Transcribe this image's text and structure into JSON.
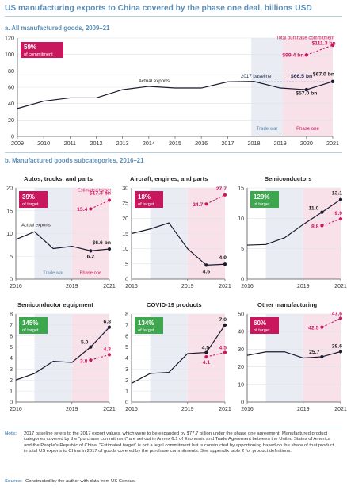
{
  "header": {
    "title": "US manufacturing exports to China covered by the phase one deal, billions USD",
    "section_a": "a. All manufactured goods, 2009–21",
    "section_b": "b. Manufactured goods subcategories, 2016–21"
  },
  "colors": {
    "actual": "#1a1a2e",
    "target": "#c8175d",
    "badge_red": "#c8175d",
    "badge_green": "#3fa650",
    "trade_war_shade": "#e9ecf3",
    "phase_one_shade": "#f9e1ea"
  },
  "chart_data": [
    {
      "id": "all",
      "type": "line",
      "title": "a. All manufactured goods, 2009–21",
      "x_ticks": [
        "2009",
        "2010",
        "2011",
        "2012",
        "2013",
        "2014",
        "2015",
        "2016",
        "2017",
        "2018",
        "2019",
        "2020",
        "2021"
      ],
      "ylim": [
        0,
        120
      ],
      "y_ticks": [
        "0",
        "20",
        "40",
        "60",
        "80",
        "100",
        "120"
      ],
      "badge": {
        "value": "59%",
        "text": "of commitment",
        "color": "#c8175d"
      },
      "shades": [
        {
          "label": "Trade war",
          "from": 2017.9,
          "to": 2019.1
        },
        {
          "label": "Phase one",
          "from": 2019.1,
          "to": 2021
        }
      ],
      "series": [
        {
          "name": "Actual exports",
          "x": [
            2009,
            2010,
            2011,
            2012,
            2013,
            2014,
            2015,
            2016,
            2017,
            2018,
            2019,
            2020,
            2021
          ],
          "y": [
            34,
            43,
            47,
            47,
            57,
            61,
            59,
            59,
            66.5,
            67,
            59,
            57,
            67
          ]
        },
        {
          "name": "Total purchase commitment",
          "x": [
            2020,
            2021
          ],
          "y": [
            99.4,
            111.3
          ]
        },
        {
          "name": "2017 baseline",
          "x": [
            2017.4,
            2021
          ],
          "y": [
            66.5,
            66.5
          ]
        }
      ],
      "labels": {
        "actual": "Actual exports",
        "commitment": "Total purchase commitment",
        "commitment_value": "$111.3 bn",
        "target_2020": "$99.4 bn",
        "baseline": "2017 baseline",
        "baseline_value": "$66.5 bn",
        "actual_2021": "$67.0 bn",
        "actual_2020": "$57.0 bn"
      }
    },
    {
      "id": "autos",
      "type": "line",
      "title": "Autos, trucks, and parts",
      "ylim": [
        0,
        20
      ],
      "y_ticks": [
        "0",
        "5",
        "10",
        "15",
        "20"
      ],
      "x_ticks": [
        "2016",
        "2019",
        "2021"
      ],
      "badge": {
        "value": "39%",
        "text": "of target",
        "color": "#c8175d"
      },
      "shade_labels": [
        "Trade war",
        "Phase one"
      ],
      "actual": {
        "x": [
          2016,
          2017,
          2018,
          2019,
          2020,
          2021
        ],
        "y": [
          8.7,
          10.4,
          6.7,
          7.2,
          6.2,
          6.6
        ]
      },
      "target": {
        "x": [
          2020,
          2021
        ],
        "y": [
          15.4,
          17.3
        ]
      },
      "annotations": {
        "actual_label": "Actual exports",
        "target_label": "Estimated target",
        "target_2021": "$17.3 bn",
        "target_2020": "15.4",
        "actual_2020": "6.2",
        "actual_2021": "$6.6 bn"
      }
    },
    {
      "id": "aircraft",
      "type": "line",
      "title": "Aircraft, engines, and parts",
      "ylim": [
        0,
        30
      ],
      "y_ticks": [
        "0",
        "5",
        "10",
        "15",
        "20",
        "25",
        "30"
      ],
      "x_ticks": [
        "2016",
        "2019",
        "2021"
      ],
      "badge": {
        "value": "18%",
        "text": "of target",
        "color": "#c8175d"
      },
      "actual": {
        "x": [
          2016,
          2017,
          2018,
          2019,
          2020,
          2021
        ],
        "y": [
          15,
          16.5,
          18.5,
          10,
          4.6,
          4.9
        ]
      },
      "target": {
        "x": [
          2020,
          2021
        ],
        "y": [
          24.7,
          27.7
        ]
      },
      "annotations": {
        "target_2021": "27.7",
        "target_2020": "24.7",
        "actual_2020": "4.6",
        "actual_2021": "4.9"
      }
    },
    {
      "id": "semis",
      "type": "line",
      "title": "Semiconductors",
      "ylim": [
        0,
        15
      ],
      "y_ticks": [
        "0",
        "5",
        "10",
        "15"
      ],
      "x_ticks": [
        "2016",
        "2019",
        "2021"
      ],
      "badge": {
        "value": "129%",
        "text": "of target",
        "color": "#3fa650"
      },
      "actual": {
        "x": [
          2016,
          2017,
          2018,
          2019,
          2020,
          2021
        ],
        "y": [
          5.6,
          5.7,
          6.8,
          9,
          11,
          13.1
        ]
      },
      "target": {
        "x": [
          2020,
          2021
        ],
        "y": [
          8.8,
          9.9
        ]
      },
      "annotations": {
        "actual_2021": "13.1",
        "actual_2020": "11.0",
        "target_2021": "9.9",
        "target_2020": "8.8"
      }
    },
    {
      "id": "semi_eq",
      "type": "line",
      "title": "Semiconductor equipment",
      "ylim": [
        0,
        8
      ],
      "y_ticks": [
        "0",
        "1",
        "2",
        "3",
        "4",
        "5",
        "6",
        "7",
        "8"
      ],
      "x_ticks": [
        "2016",
        "2019",
        "2021"
      ],
      "badge": {
        "value": "145%",
        "text": "of target",
        "color": "#3fa650"
      },
      "actual": {
        "x": [
          2016,
          2017,
          2018,
          2019,
          2020,
          2021
        ],
        "y": [
          2,
          2.6,
          3.7,
          3.6,
          5,
          6.8
        ]
      },
      "target": {
        "x": [
          2020,
          2021
        ],
        "y": [
          3.8,
          4.3
        ]
      },
      "annotations": {
        "actual_2021": "6.8",
        "actual_2020": "5.0",
        "target_2021": "4.3",
        "target_2020": "3.8"
      }
    },
    {
      "id": "covid",
      "type": "line",
      "title": "COVID-19 products",
      "ylim": [
        0,
        8
      ],
      "y_ticks": [
        "0",
        "1",
        "2",
        "3",
        "4",
        "5",
        "6",
        "7",
        "8"
      ],
      "x_ticks": [
        "2016",
        "2019",
        "2021"
      ],
      "badge": {
        "value": "134%",
        "text": "of target",
        "color": "#3fa650"
      },
      "actual": {
        "x": [
          2016,
          2017,
          2018,
          2019,
          2020,
          2021
        ],
        "y": [
          1.7,
          2.6,
          2.7,
          4.4,
          4.5,
          7.0
        ]
      },
      "target": {
        "x": [
          2020,
          2021
        ],
        "y": [
          4.1,
          4.5
        ]
      },
      "annotations": {
        "actual_2021": "7.0",
        "actual_2020": "4.5",
        "target_2021": "4.5",
        "target_2020": "4.1"
      }
    },
    {
      "id": "other",
      "type": "line",
      "title": "Other manufacturing",
      "ylim": [
        0,
        50
      ],
      "y_ticks": [
        "0",
        "10",
        "20",
        "30",
        "40",
        "50"
      ],
      "x_ticks": [
        "2016",
        "2019",
        "2021"
      ],
      "badge": {
        "value": "60%",
        "text": "of target",
        "color": "#c8175d"
      },
      "actual": {
        "x": [
          2016,
          2017,
          2018,
          2019,
          2020,
          2021
        ],
        "y": [
          26.5,
          28.5,
          28.5,
          25,
          25.7,
          28.6
        ]
      },
      "target": {
        "x": [
          2020,
          2021
        ],
        "y": [
          42.5,
          47.6
        ]
      },
      "annotations": {
        "target_2021": "47.6",
        "target_2020": "42.5",
        "actual_2020": "25.7",
        "actual_2021": "28.6"
      }
    }
  ],
  "footer": {
    "note_label": "Note:",
    "note_text": "2017 baseline refers to the 2017 export values, which were to be expanded by $77.7 billion under the phase one agreement. Manufactured product categories covered by the “purchase commitment” are set out in Annex 6.1 of Economic and Trade Agreement between the United States of America and the People’s Republic of China. “Estimated target” is not a legal commitment but is constructed by apportioning based on the share of that product in total US exports to China in 2017 of goods covered by the purchase commitments. See appendix table 2 for product definitions.",
    "source_label": "Source:",
    "source_text": "Constructed by the author with data from US Census."
  }
}
